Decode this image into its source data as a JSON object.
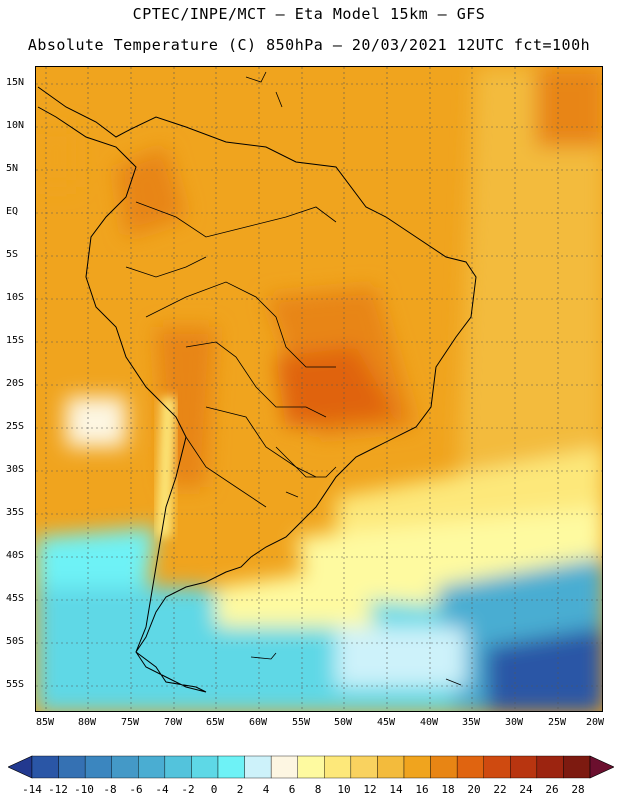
{
  "header": {
    "line1": "CPTEC/INPE/MCT –  Eta Model 15km – GFS",
    "line2": "Absolute Temperature (C) 850hPa – 20/03/2021 12UTC fct=100h"
  },
  "map": {
    "lat_labels": [
      "15N",
      "10N",
      "5N",
      "EQ",
      "5S",
      "10S",
      "15S",
      "20S",
      "25S",
      "30S",
      "35S",
      "40S",
      "45S",
      "50S",
      "55S"
    ],
    "lon_labels": [
      "85W",
      "80W",
      "75W",
      "70W",
      "65W",
      "60W",
      "55W",
      "50W",
      "45W",
      "40W",
      "35W",
      "30W",
      "25W",
      "20W"
    ]
  },
  "colorbar": {
    "labels": [
      "-14",
      "-12",
      "-10",
      "-8",
      "-6",
      "-4",
      "-2",
      "0",
      "2",
      "4",
      "6",
      "8",
      "10",
      "12",
      "14",
      "16",
      "18",
      "20",
      "22",
      "24",
      "26",
      "28"
    ],
    "colors": [
      "#22398f",
      "#2a56a6",
      "#3571b3",
      "#3b86bf",
      "#4499c7",
      "#4aadd2",
      "#53c3dc",
      "#5ed8e6",
      "#6ef2f6",
      "#cdf2fa",
      "#fdf6e2",
      "#fefaa0",
      "#fde87a",
      "#f9d25f",
      "#f3bb3c",
      "#f0a41e",
      "#e88514",
      "#e06410",
      "#cf4a10",
      "#b83510",
      "#9c2410",
      "#7d1a10",
      "#6b0f2e"
    ]
  }
}
